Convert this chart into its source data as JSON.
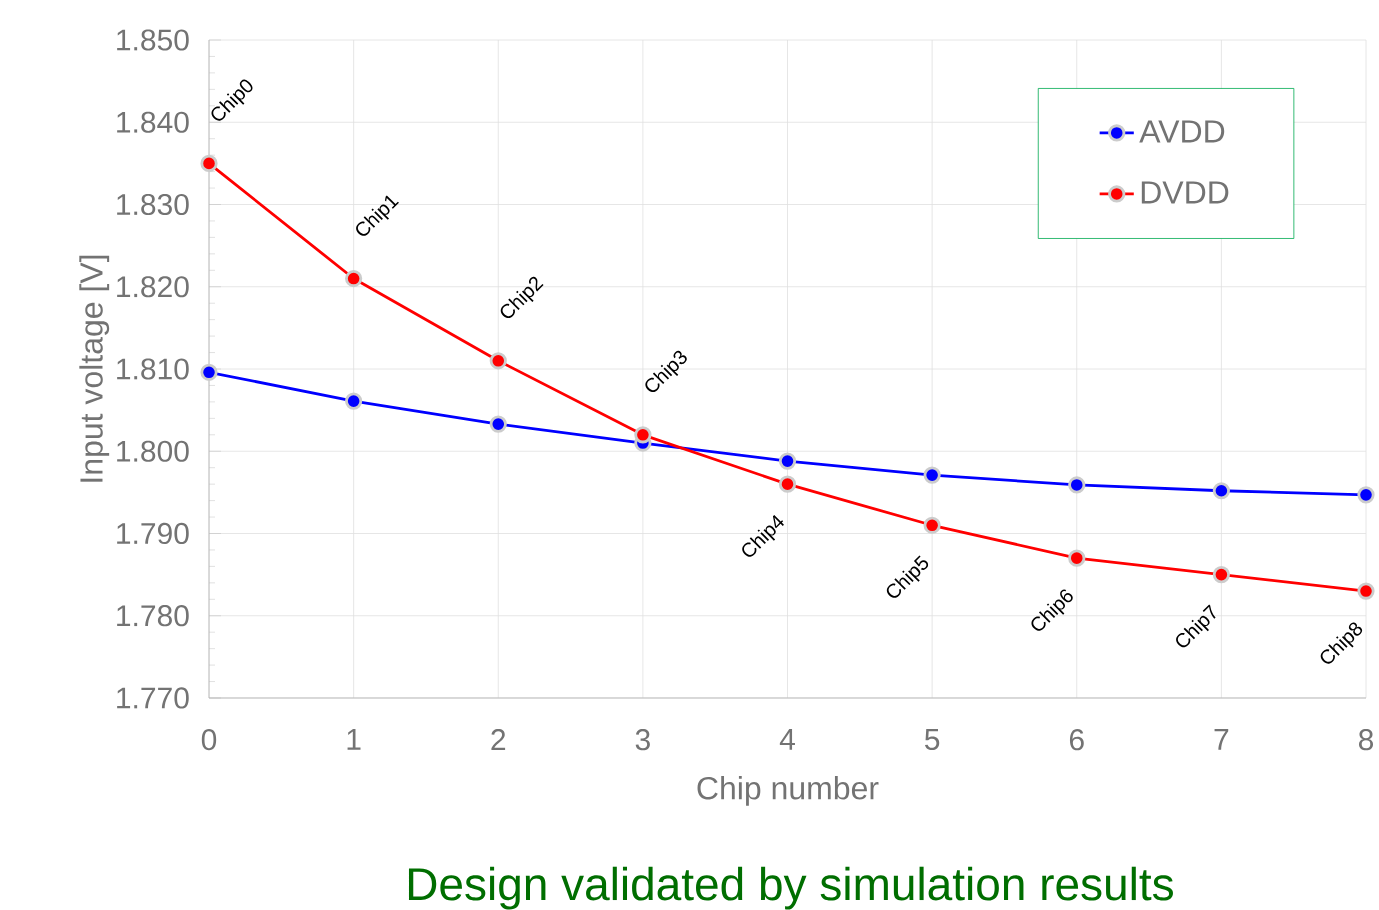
{
  "chart_data": {
    "type": "line",
    "title": "Design validated by simulation results",
    "xlabel": "Chip number",
    "ylabel": "Input voltage [V]",
    "x": [
      0,
      1,
      2,
      3,
      4,
      5,
      6,
      7,
      8
    ],
    "series": [
      {
        "name": "AVDD",
        "color": "#0000ff",
        "values": [
          1.8096,
          1.8061,
          1.8033,
          1.801,
          1.7988,
          1.7971,
          1.7959,
          1.7952,
          1.7947
        ]
      },
      {
        "name": "DVDD",
        "color": "#ff0000",
        "values": [
          1.835,
          1.821,
          1.811,
          1.802,
          1.796,
          1.791,
          1.787,
          1.785,
          1.783
        ]
      }
    ],
    "xlim": [
      0,
      8
    ],
    "ylim": [
      1.77,
      1.85
    ],
    "xticks": [
      0,
      1,
      2,
      3,
      4,
      5,
      6,
      7,
      8
    ],
    "yticks": [
      {
        "value": 1.77,
        "label": "1.770"
      },
      {
        "value": 1.78,
        "label": "1.780"
      },
      {
        "value": 1.79,
        "label": "1.790"
      },
      {
        "value": 1.8,
        "label": "1.800"
      },
      {
        "value": 1.81,
        "label": "1.810"
      },
      {
        "value": 1.82,
        "label": "1.820"
      },
      {
        "value": 1.83,
        "label": "1.830"
      },
      {
        "value": 1.84,
        "label": "1.840"
      },
      {
        "value": 1.85,
        "label": "1.850"
      }
    ],
    "grid": true,
    "legend": "top right",
    "marker": "circle",
    "line_style": "solid",
    "annotations": [
      {
        "text": "Chip0",
        "x": 0,
        "y": 1.835
      },
      {
        "text": "Chip1",
        "x": 1,
        "y": 1.821
      },
      {
        "text": "Chip2",
        "x": 2,
        "y": 1.811
      },
      {
        "text": "Chip3",
        "x": 3,
        "y": 1.802
      },
      {
        "text": "Chip4",
        "x": 4,
        "y": 1.796
      },
      {
        "text": "Chip5",
        "x": 5,
        "y": 1.791
      },
      {
        "text": "Chip6",
        "x": 6,
        "y": 1.787
      },
      {
        "text": "Chip7",
        "x": 7,
        "y": 1.785
      },
      {
        "text": "Chip8",
        "x": 8,
        "y": 1.783
      }
    ]
  }
}
